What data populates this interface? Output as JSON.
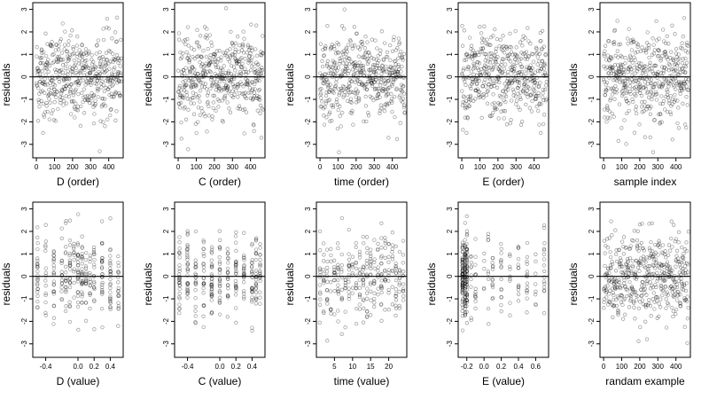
{
  "chart_data": [
    {
      "type": "scatter",
      "ylabel": "residuals",
      "xlabel": "D (order)",
      "xticks": [
        "0",
        "100",
        "200",
        "300",
        "400"
      ],
      "xtick_values": [
        0,
        100,
        200,
        300,
        400
      ],
      "xlim": [
        -20,
        480
      ],
      "yticks": [
        "-3",
        "-2",
        "-1",
        "0",
        "1",
        "2",
        "3"
      ],
      "ylim": [
        -3.6,
        3.3
      ],
      "refline": 0,
      "x_kind": "index",
      "n": 470,
      "x_spread": "",
      "points": []
    },
    {
      "type": "scatter",
      "ylabel": "residuals",
      "xlabel": "C (order)",
      "xticks": [
        "0",
        "100",
        "200",
        "300",
        "400"
      ],
      "xtick_values": [
        0,
        100,
        200,
        300,
        400
      ],
      "xlim": [
        -20,
        480
      ],
      "yticks": [
        "-3",
        "-2",
        "-1",
        "0",
        "1",
        "2",
        "3"
      ],
      "ylim": [
        -3.6,
        3.3
      ],
      "refline": 0,
      "x_kind": "index",
      "n": 470,
      "points": []
    },
    {
      "type": "scatter",
      "ylabel": "residuals",
      "xlabel": "time (order)",
      "xticks": [
        "0",
        "100",
        "200",
        "300",
        "400"
      ],
      "xtick_values": [
        0,
        100,
        200,
        300,
        400
      ],
      "xlim": [
        -20,
        480
      ],
      "yticks": [
        "-3",
        "-2",
        "-1",
        "0",
        "1",
        "2",
        "3"
      ],
      "ylim": [
        -3.6,
        3.3
      ],
      "refline": 0,
      "x_kind": "index",
      "n": 470,
      "points": []
    },
    {
      "type": "scatter",
      "ylabel": "residuals",
      "xlabel": "E (order)",
      "xticks": [
        "0",
        "100",
        "200",
        "300",
        "400"
      ],
      "xtick_values": [
        0,
        100,
        200,
        300,
        400
      ],
      "xlim": [
        -20,
        480
      ],
      "yticks": [
        "-3",
        "-2",
        "-1",
        "0",
        "1",
        "2",
        "3"
      ],
      "ylim": [
        -3.6,
        3.3
      ],
      "refline": 0,
      "x_kind": "index",
      "n": 470,
      "points": []
    },
    {
      "type": "scatter",
      "ylabel": "residuals",
      "xlabel": "sample index",
      "xticks": [
        "0",
        "100",
        "200",
        "300",
        "400"
      ],
      "xtick_values": [
        0,
        100,
        200,
        300,
        400
      ],
      "xlim": [
        -20,
        480
      ],
      "yticks": [
        "-3",
        "-2",
        "-1",
        "0",
        "1",
        "2",
        "3"
      ],
      "ylim": [
        -3.6,
        3.3
      ],
      "refline": 0,
      "x_kind": "index",
      "n": 470,
      "points": []
    },
    {
      "type": "scatter",
      "ylabel": "residuals",
      "xlabel": "D (value)",
      "xticks": [
        "-0.4",
        "0.0",
        "0.2",
        "0.4"
      ],
      "xtick_values": [
        -0.4,
        0.0,
        0.2,
        0.4
      ],
      "xlim": [
        -0.56,
        0.56
      ],
      "yticks": [
        "-3",
        "-2",
        "-1",
        "0",
        "1",
        "2",
        "3"
      ],
      "ylim": [
        -3.6,
        3.3
      ],
      "refline": 0,
      "x_kind": "discrete",
      "x_levels": [
        -0.5,
        -0.4,
        -0.3,
        -0.2,
        -0.15,
        -0.1,
        -0.05,
        0.0,
        0.05,
        0.1,
        0.15,
        0.2,
        0.3,
        0.4,
        0.5
      ],
      "n": 300,
      "points": []
    },
    {
      "type": "scatter",
      "ylabel": "residuals",
      "xlabel": "C (value)",
      "xticks": [
        "-0.4",
        "0.0",
        "0.2",
        "0.4"
      ],
      "xtick_values": [
        -0.4,
        0.0,
        0.2,
        0.4
      ],
      "xlim": [
        -0.56,
        0.56
      ],
      "yticks": [
        "-3",
        "-2",
        "-1",
        "0",
        "1",
        "2",
        "3"
      ],
      "ylim": [
        -3.6,
        3.3
      ],
      "refline": 0,
      "x_kind": "discrete",
      "x_levels": [
        -0.5,
        -0.4,
        -0.3,
        -0.2,
        -0.1,
        0.0,
        0.1,
        0.2,
        0.3,
        0.4,
        0.45,
        0.5
      ],
      "n": 300,
      "points": []
    },
    {
      "type": "scatter",
      "ylabel": "residuals",
      "xlabel": "time (value)",
      "xticks": [
        "5",
        "10",
        "15",
        "20"
      ],
      "xtick_values": [
        5,
        10,
        15,
        20
      ],
      "xlim": [
        0,
        25
      ],
      "yticks": [
        "-3",
        "-2",
        "-1",
        "0",
        "1",
        "2",
        "3"
      ],
      "ylim": [
        -3.6,
        3.3
      ],
      "refline": 0,
      "x_kind": "discrete",
      "x_levels": [
        1,
        2,
        3,
        4,
        5,
        6,
        7,
        8,
        9,
        10,
        11,
        12,
        13,
        14,
        15,
        16,
        17,
        18,
        19,
        20,
        21,
        22,
        23,
        24
      ],
      "n": 300,
      "points": []
    },
    {
      "type": "scatter",
      "ylabel": "residuals",
      "xlabel": "E (value)",
      "xticks": [
        "-0.2",
        "0.0",
        "0.2",
        "0.4",
        "0.6"
      ],
      "xtick_values": [
        -0.2,
        0.0,
        0.2,
        0.4,
        0.6
      ],
      "xlim": [
        -0.3,
        0.75
      ],
      "yticks": [
        "-3",
        "-2",
        "-1",
        "0",
        "1",
        "2",
        "3"
      ],
      "ylim": [
        -3.6,
        3.3
      ],
      "refline": 0,
      "x_kind": "discrete",
      "x_levels": [
        -0.25,
        -0.22,
        -0.2,
        -0.15,
        -0.1,
        0.0,
        0.05,
        0.1,
        0.2,
        0.3,
        0.4,
        0.5,
        0.6,
        0.7
      ],
      "n": 300,
      "points": []
    },
    {
      "type": "scatter",
      "ylabel": "residuals",
      "xlabel": "randam example",
      "xticks": [
        "0",
        "100",
        "200",
        "300",
        "400"
      ],
      "xtick_values": [
        0,
        100,
        200,
        300,
        400
      ],
      "xlim": [
        -20,
        480
      ],
      "yticks": [
        "-3",
        "-2",
        "-1",
        "0",
        "1",
        "2",
        "3"
      ],
      "ylim": [
        -3.6,
        3.3
      ],
      "refline": 0,
      "x_kind": "index",
      "n": 470,
      "points": []
    }
  ]
}
